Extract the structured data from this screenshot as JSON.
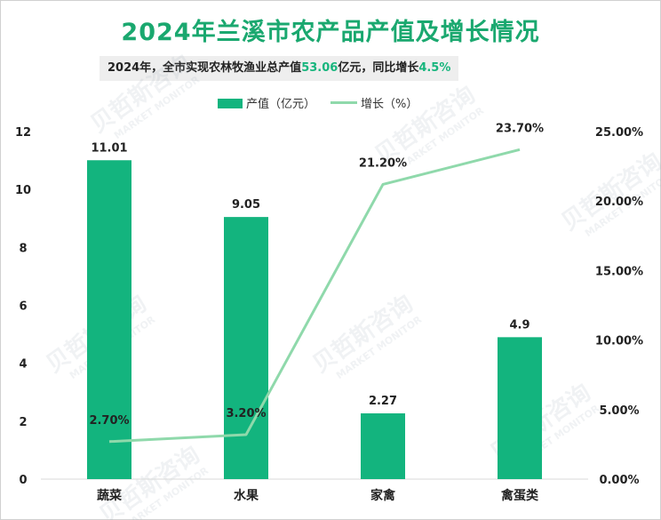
{
  "title": "2024年兰溪市农产品产值及增长情况",
  "subtitle": {
    "prefix": "2024年，全市实现农林牧渔业总产值",
    "value": "53.06",
    "middle": "亿元，同比增长",
    "growth": "4.5%"
  },
  "colors": {
    "title": "#1aa86f",
    "bar": "#13b47e",
    "line": "#8fd9ab",
    "highlight": "#17b57d"
  },
  "watermark": {
    "cn": "贝哲斯咨询",
    "en": "MARKET MONITOR"
  },
  "chart_data": {
    "type": "bar",
    "categories": [
      "蔬菜",
      "水果",
      "家禽",
      "禽蛋类"
    ],
    "series": [
      {
        "name": "产值（亿元）",
        "type": "bar",
        "axis": "left",
        "values": [
          11.01,
          9.05,
          2.27,
          4.9
        ],
        "labels": [
          "11.01",
          "9.05",
          "2.27",
          "4.9"
        ]
      },
      {
        "name": "增长（%）",
        "type": "line",
        "axis": "right",
        "values": [
          2.7,
          3.2,
          21.2,
          23.7
        ],
        "labels": [
          "2.70%",
          "3.20%",
          "21.20%",
          "23.70%"
        ]
      }
    ],
    "y_left": {
      "range": [
        0,
        12
      ],
      "ticks": [
        "0",
        "2",
        "4",
        "6",
        "8",
        "10",
        "12"
      ]
    },
    "y_right": {
      "range": [
        0,
        25
      ],
      "ticks": [
        "0.00%",
        "5.00%",
        "10.00%",
        "15.00%",
        "20.00%",
        "25.00%"
      ]
    },
    "grid": false,
    "legend_position": "top-center"
  }
}
